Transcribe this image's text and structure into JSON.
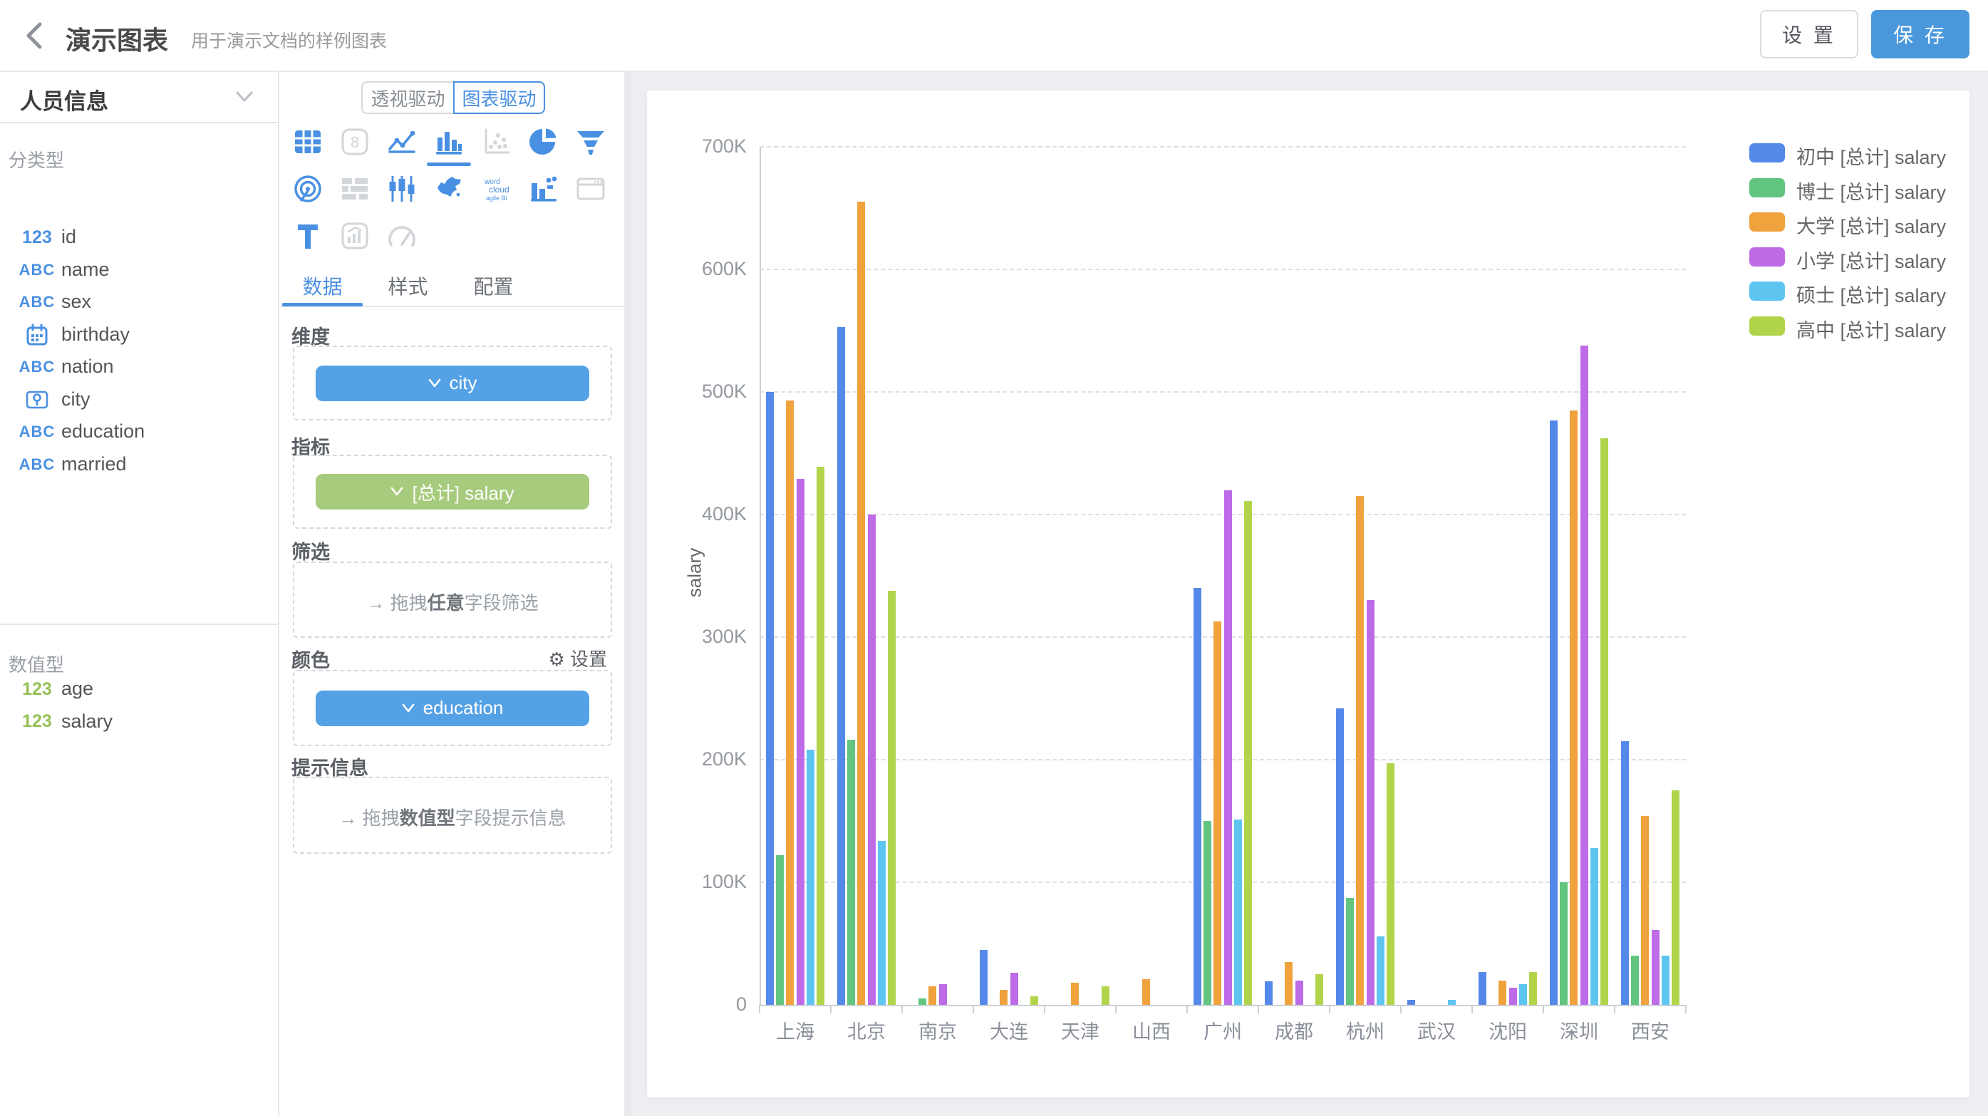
{
  "header": {
    "title": "演示图表",
    "subtitle": "用于演示文档的样例图表",
    "settings_label": "设 置",
    "save_label": "保 存"
  },
  "colors": {
    "accent": "#4a90e2",
    "save_button": "#4a98db",
    "chip_blue": "#55a1e6",
    "chip_green": "#a6cb7c",
    "canvas_bg": "#edeff2"
  },
  "sidebar": {
    "dataset_name": "人员信息",
    "sections": [
      {
        "label": "分类型",
        "fields": [
          {
            "icon": "123",
            "name": "id"
          },
          {
            "icon": "ABC",
            "name": "name"
          },
          {
            "icon": "ABC",
            "name": "sex"
          },
          {
            "icon": "calendar",
            "name": "birthday"
          },
          {
            "icon": "ABC",
            "name": "nation"
          },
          {
            "icon": "map-pin",
            "name": "city"
          },
          {
            "icon": "ABC",
            "name": "education"
          },
          {
            "icon": "ABC",
            "name": "married"
          }
        ]
      },
      {
        "label": "数值型",
        "fields": [
          {
            "icon": "123",
            "name": "age"
          },
          {
            "icon": "123",
            "name": "salary"
          }
        ]
      }
    ]
  },
  "panel": {
    "mode_tabs": [
      {
        "label": "透视驱动",
        "active": false
      },
      {
        "label": "图表驱动",
        "active": true
      }
    ],
    "chart_types": [
      {
        "name": "table",
        "state": "active"
      },
      {
        "name": "number",
        "state": "disabled"
      },
      {
        "name": "line",
        "state": "active"
      },
      {
        "name": "bar",
        "state": "selected"
      },
      {
        "name": "scatter",
        "state": "disabled"
      },
      {
        "name": "pie",
        "state": "active"
      },
      {
        "name": "funnel",
        "state": "active"
      },
      {
        "name": "radar",
        "state": "active"
      },
      {
        "name": "gantt",
        "state": "disabled"
      },
      {
        "name": "kline",
        "state": "active"
      },
      {
        "name": "map-china",
        "state": "active"
      },
      {
        "name": "wordcloud",
        "state": "active"
      },
      {
        "name": "combo",
        "state": "active"
      },
      {
        "name": "iframe",
        "state": "disabled"
      },
      {
        "name": "text",
        "state": "active"
      },
      {
        "name": "image",
        "state": "disabled"
      },
      {
        "name": "gauge",
        "state": "disabled"
      }
    ],
    "tabs": [
      {
        "label": "数据",
        "active": true
      },
      {
        "label": "样式",
        "active": false
      },
      {
        "label": "配置",
        "active": false
      }
    ],
    "sections": {
      "dimension": {
        "label": "维度",
        "chip": {
          "text": "city",
          "color": "blue"
        }
      },
      "metric": {
        "label": "指标",
        "chip": {
          "text": "[总计] salary",
          "color": "green"
        }
      },
      "filter": {
        "label": "筛选",
        "placeholder": {
          "arrow": "→",
          "prefix": "拖拽",
          "bold": "任意",
          "suffix": "字段筛选"
        }
      },
      "color": {
        "label": "颜色",
        "settings_label": "设置",
        "chip": {
          "text": "education",
          "color": "blue"
        }
      },
      "tooltip": {
        "label": "提示信息",
        "placeholder": {
          "arrow": "→",
          "prefix": "拖拽",
          "bold": "数值型",
          "suffix": "字段提示信息"
        }
      }
    }
  },
  "chart_data": {
    "type": "bar",
    "title": "",
    "categories": [
      "上海",
      "北京",
      "南京",
      "大连",
      "天津",
      "山西",
      "广州",
      "成都",
      "杭州",
      "武汉",
      "沈阳",
      "深圳",
      "西安"
    ],
    "unit": "K",
    "series": [
      {
        "name": "初中 [总计] salary",
        "color": "#5589e9",
        "values": [
          500,
          553,
          0,
          45,
          0,
          0,
          340,
          19,
          242,
          4,
          27,
          477,
          215
        ]
      },
      {
        "name": "博士 [总计] salary",
        "color": "#62c57f",
        "values": [
          122,
          216,
          5,
          0,
          0,
          0,
          150,
          0,
          87,
          0,
          0,
          100,
          40
        ]
      },
      {
        "name": "大学 [总计] salary",
        "color": "#f0a23d",
        "values": [
          493,
          655,
          15,
          12,
          18,
          21,
          313,
          35,
          415,
          0,
          20,
          485,
          154
        ]
      },
      {
        "name": "小学 [总计] salary",
        "color": "#be6be8",
        "values": [
          429,
          400,
          17,
          26,
          0,
          0,
          420,
          20,
          330,
          0,
          14,
          538,
          61
        ]
      },
      {
        "name": "硕士 [总计] salary",
        "color": "#5ec5f1",
        "values": [
          208,
          134,
          0,
          0,
          0,
          0,
          151,
          0,
          56,
          4,
          17,
          128,
          40
        ]
      },
      {
        "name": "高中 [总计] salary",
        "color": "#b2d44b",
        "values": [
          439,
          338,
          0,
          7,
          15,
          0,
          411,
          25,
          197,
          0,
          27,
          462,
          175
        ]
      }
    ],
    "ylabel": "salary",
    "ylim": [
      0,
      700
    ],
    "y_ticks": [
      "0",
      "100K",
      "200K",
      "300K",
      "400K",
      "500K",
      "600K",
      "700K"
    ],
    "grid": true,
    "legend_position": "right"
  }
}
